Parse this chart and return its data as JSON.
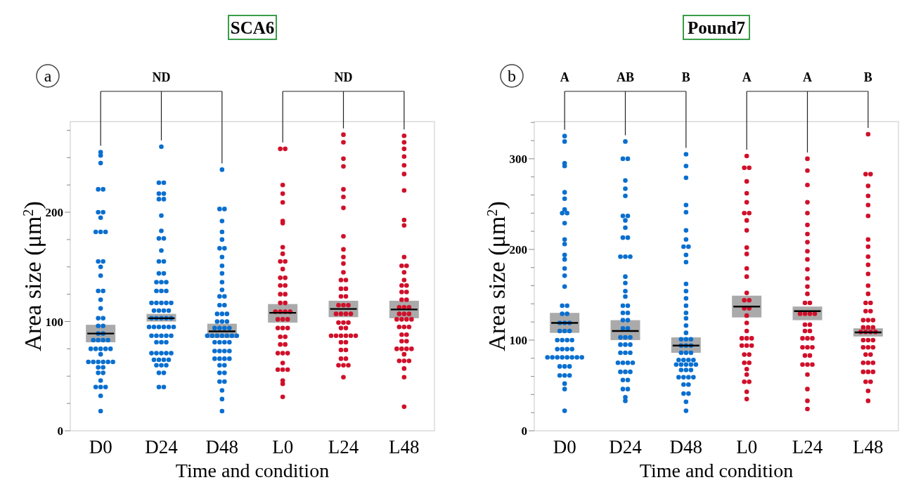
{
  "chart_data": [
    {
      "type": "scatter",
      "title": "SCA6",
      "xlabel": "Time and condition",
      "ylabel": "Area size (μm$^{2}$)",
      "categories": [
        "D0",
        "D24",
        "D48",
        "L0",
        "L24",
        "L48"
      ],
      "ylim": [
        0,
        283
      ],
      "yticks": [
        0,
        {
          "value": 25,
          "label": null
        },
        {
          "value": 50,
          "label": null
        },
        {
          "value": 75,
          "label": null
        },
        100,
        {
          "value": 125,
          "label": null
        },
        {
          "value": 150,
          "label": null
        },
        {
          "value": 175,
          "label": null
        },
        200,
        {
          "value": 225,
          "label": null
        },
        {
          "value": 250,
          "label": null
        },
        {
          "value": 275,
          "label": null
        }
      ],
      "annotations": [
        "a",
        {
          "text": "ND",
          "x": "D24"
        },
        {
          "text": "ND",
          "x": "L24"
        }
      ],
      "series": [
        {
          "type": "box",
          "color": "#aaaaaa",
          "boxes": [
            {
              "low": 81,
              "q1": 81,
              "median": 89,
              "q3": 97,
              "high": 97
            },
            {
              "low": 100,
              "q1": 100,
              "median": 103,
              "q3": 107,
              "high": 107
            },
            {
              "low": 85,
              "q1": 85,
              "median": 91,
              "q3": 98,
              "high": 98
            },
            {
              "low": 99,
              "q1": 99,
              "median": 108,
              "q3": 116,
              "high": 116
            },
            {
              "low": 104,
              "q1": 104,
              "median": 111.5,
              "q3": 119,
              "high": 119
            },
            {
              "low": 103,
              "q1": 103,
              "median": 111,
              "q3": 119,
              "high": 119
            }
          ]
        },
        {
          "color": "#0a6fcf",
          "marker": "circle",
          "x": [
            "D0",
            "D0",
            "D0",
            "D0",
            "D0",
            "D0",
            "D0",
            "D0",
            "D0",
            "D0",
            "D0",
            "D0",
            "D0",
            "D0",
            "D0",
            "D0",
            "D0",
            "D0",
            "D0",
            "D0",
            "D0",
            "D0",
            "D0",
            "D0",
            "D0",
            "D0",
            "D0",
            "D0",
            "D0",
            "D0",
            "D0",
            "D0",
            "D0",
            "D0",
            "D0",
            "D0",
            "D0",
            "D0",
            "D0",
            "D0",
            "D0",
            "D0",
            "D0",
            "D0",
            "D0",
            "D0",
            "D0",
            "D0",
            "D0",
            "D0",
            "D0",
            "D24",
            "D24",
            "D24",
            "D24",
            "D24",
            "D24",
            "D24",
            "D24",
            "D24",
            "D24",
            "D24",
            "D24",
            "D24",
            "D24",
            "D24",
            "D24",
            "D24",
            "D24",
            "D24",
            "D24",
            "D24",
            "D24",
            "D24",
            "D24",
            "D24",
            "D24",
            "D24",
            "D24",
            "D24",
            "D24",
            "D24",
            "D24",
            "D24",
            "D24",
            "D24",
            "D24",
            "D24",
            "D24",
            "D24",
            "D24",
            "D24",
            "D24",
            "D24",
            "D24",
            "D24",
            "D24",
            "D24",
            "D24",
            "D24",
            "D24",
            "D24",
            "D24",
            "D24",
            "D24",
            "D24",
            "D24",
            "D24",
            "D24",
            "D24",
            "D24",
            "D24",
            "D24",
            "D24",
            "D24",
            "D24",
            "D24",
            "D48",
            "D48",
            "D48",
            "D48",
            "D48",
            "D48",
            "D48",
            "D48",
            "D48",
            "D48",
            "D48",
            "D48",
            "D48",
            "D48",
            "D48",
            "D48",
            "D48",
            "D48",
            "D48",
            "D48",
            "D48",
            "D48",
            "D48",
            "D48",
            "D48",
            "D48",
            "D48",
            "D48",
            "D48",
            "D48",
            "D48",
            "D48",
            "D48",
            "D48",
            "D48",
            "D48",
            "D48",
            "D48",
            "D48",
            "D48",
            "D48",
            "D48",
            "D48",
            "D48",
            "D48",
            "D48",
            "D48",
            "D48",
            "D48",
            "D48",
            "D48",
            "D48",
            "D48",
            "D48",
            "D48"
          ],
          "values": [
            255,
            252,
            245,
            221,
            221,
            200,
            200,
            195,
            182,
            182,
            182,
            155,
            155,
            150,
            142,
            128,
            128,
            120,
            112,
            103,
            103,
            96,
            96,
            89,
            89,
            83,
            83,
            83,
            83,
            75,
            75,
            75,
            75,
            75,
            70,
            63,
            63,
            63,
            63,
            63,
            63,
            58,
            58,
            53,
            53,
            46,
            40,
            40,
            40,
            32,
            18,
            260,
            227,
            227,
            217,
            217,
            212,
            212,
            197,
            183,
            176,
            176,
            165,
            155,
            155,
            144,
            144,
            136,
            136,
            136,
            128,
            128,
            128,
            117,
            117,
            117,
            117,
            117,
            110,
            110,
            110,
            110,
            103,
            103,
            103,
            103,
            103,
            95,
            95,
            95,
            95,
            95,
            95,
            87,
            87,
            87,
            87,
            87,
            81,
            81,
            81,
            71,
            71,
            71,
            71,
            71,
            65,
            65,
            65,
            65,
            60,
            60,
            60,
            53,
            53,
            40,
            40,
            239,
            203,
            203,
            192,
            182,
            175,
            167,
            167,
            159,
            151,
            144,
            136,
            129,
            123,
            123,
            115,
            115,
            107,
            107,
            107,
            100,
            100,
            100,
            94,
            94,
            94,
            94,
            87,
            87,
            87,
            87,
            87,
            87,
            87,
            81,
            81,
            81,
            81,
            73,
            73,
            73,
            73,
            66,
            66,
            66,
            66,
            60,
            60,
            53,
            53,
            45,
            45,
            37,
            29,
            18
          ]
        },
        {
          "color": "#d0102a",
          "marker": "circle",
          "x": [
            "L0",
            "L0",
            "L0",
            "L0",
            "L0",
            "L0",
            "L0",
            "L0",
            "L0",
            "L0",
            "L0",
            "L0",
            "L0",
            "L0",
            "L0",
            "L0",
            "L0",
            "L0",
            "L0",
            "L0",
            "L0",
            "L0",
            "L0",
            "L0",
            "L0",
            "L0",
            "L0",
            "L0",
            "L0",
            "L0",
            "L0",
            "L0",
            "L0",
            "L0",
            "L0",
            "L0",
            "L0",
            "L0",
            "L0",
            "L0",
            "L0",
            "L0",
            "L0",
            "L0",
            "L24",
            "L24",
            "L24",
            "L24",
            "L24",
            "L24",
            "L24",
            "L24",
            "L24",
            "L24",
            "L24",
            "L24",
            "L24",
            "L24",
            "L24",
            "L24",
            "L24",
            "L24",
            "L24",
            "L24",
            "L24",
            "L24",
            "L24",
            "L24",
            "L24",
            "L24",
            "L24",
            "L24",
            "L24",
            "L24",
            "L24",
            "L24",
            "L24",
            "L24",
            "L24",
            "L24",
            "L24",
            "L24",
            "L24",
            "L24",
            "L24",
            "L24",
            "L24",
            "L24",
            "L24",
            "L24",
            "L48",
            "L48",
            "L48",
            "L48",
            "L48",
            "L48",
            "L48",
            "L48",
            "L48",
            "L48",
            "L48",
            "L48",
            "L48",
            "L48",
            "L48",
            "L48",
            "L48",
            "L48",
            "L48",
            "L48",
            "L48",
            "L48",
            "L48",
            "L48",
            "L48",
            "L48",
            "L48",
            "L48",
            "L48",
            "L48",
            "L48",
            "L48",
            "L48",
            "L48",
            "L48",
            "L48",
            "L48",
            "L48",
            "L48",
            "L48",
            "L48",
            "L48",
            "L48",
            "L48",
            "L48",
            "L48",
            "L48",
            "L48"
          ],
          "values": [
            258,
            258,
            225,
            217,
            209,
            192,
            190,
            168,
            162,
            155,
            155,
            148,
            140,
            140,
            133,
            133,
            125,
            125,
            117,
            117,
            109,
            109,
            109,
            109,
            102,
            102,
            102,
            94,
            94,
            94,
            86,
            86,
            79,
            79,
            71,
            71,
            71,
            62,
            56,
            56,
            56,
            46,
            43,
            31,
            271,
            264,
            249,
            242,
            221,
            214,
            204,
            178,
            166,
            159,
            153,
            145,
            138,
            138,
            130,
            130,
            123,
            123,
            115,
            115,
            115,
            107,
            107,
            107,
            107,
            99,
            99,
            99,
            94,
            94,
            87,
            87,
            87,
            87,
            87,
            87,
            81,
            81,
            74,
            74,
            66,
            66,
            60,
            60,
            60,
            49,
            270,
            264,
            258,
            251,
            243,
            235,
            220,
            193,
            188,
            159,
            151,
            151,
            145,
            138,
            133,
            133,
            127,
            127,
            120,
            120,
            113,
            113,
            113,
            107,
            107,
            107,
            102,
            102,
            102,
            102,
            95,
            95,
            95,
            88,
            88,
            82,
            82,
            75,
            75,
            75,
            75,
            70,
            64,
            64,
            64,
            57,
            49,
            22
          ]
        }
      ]
    },
    {
      "type": "scatter",
      "title": "Pound7",
      "xlabel": "Time and condition",
      "ylabel": "Area size (μm$^{2}$)",
      "categories": [
        "D0",
        "D24",
        "D48",
        "L0",
        "L24",
        "L48"
      ],
      "ylim": [
        0,
        341
      ],
      "yticks": [
        0,
        {
          "value": 20,
          "label": null
        },
        {
          "value": 40,
          "label": null
        },
        {
          "value": 60,
          "label": null
        },
        {
          "value": 80,
          "label": null
        },
        100,
        {
          "value": 120,
          "label": null
        },
        {
          "value": 140,
          "label": null
        },
        {
          "value": 160,
          "label": null
        },
        {
          "value": 180,
          "label": null
        },
        200,
        {
          "value": 220,
          "label": null
        },
        {
          "value": 240,
          "label": null
        },
        {
          "value": 260,
          "label": null
        },
        {
          "value": 280,
          "label": null
        },
        300,
        {
          "value": 320,
          "label": null
        },
        {
          "value": 340,
          "label": null
        }
      ],
      "annotations": [
        "b",
        {
          "text": "A",
          "x": "D0"
        },
        {
          "text": "AB",
          "x": "D24"
        },
        {
          "text": "B",
          "x": "D48"
        },
        {
          "text": "A",
          "x": "L0"
        },
        {
          "text": "A",
          "x": "L24"
        },
        {
          "text": "B",
          "x": "L48"
        }
      ],
      "series": [
        {
          "type": "box",
          "color": "#aaaaaa",
          "boxes": [
            {
              "low": 108,
              "q1": 108,
              "median": 119,
              "q3": 130,
              "high": 130
            },
            {
              "low": 100,
              "q1": 100,
              "median": 110,
              "q3": 122,
              "high": 122
            },
            {
              "low": 86,
              "q1": 86,
              "median": 94,
              "q3": 103,
              "high": 103
            },
            {
              "low": 125,
              "q1": 125,
              "median": 137,
              "q3": 149,
              "high": 149
            },
            {
              "low": 122,
              "q1": 122,
              "median": 132,
              "q3": 137,
              "high": 137
            },
            {
              "low": 104,
              "q1": 104,
              "median": 108.5,
              "q3": 113,
              "high": 113
            }
          ]
        },
        {
          "color": "#0a6fcf",
          "marker": "circle",
          "x": [
            "D0",
            "D0",
            "D0",
            "D0",
            "D0",
            "D0",
            "D0",
            "D0",
            "D0",
            "D0",
            "D0",
            "D0",
            "D0",
            "D0",
            "D0",
            "D0",
            "D0",
            "D0",
            "D0",
            "D0",
            "D0",
            "D0",
            "D0",
            "D0",
            "D0",
            "D0",
            "D0",
            "D0",
            "D0",
            "D0",
            "D0",
            "D0",
            "D0",
            "D0",
            "D0",
            "D0",
            "D0",
            "D0",
            "D0",
            "D0",
            "D0",
            "D0",
            "D0",
            "D0",
            "D0",
            "D0",
            "D0",
            "D0",
            "D0",
            "D0",
            "D0",
            "D0",
            "D24",
            "D24",
            "D24",
            "D24",
            "D24",
            "D24",
            "D24",
            "D24",
            "D24",
            "D24",
            "D24",
            "D24",
            "D24",
            "D24",
            "D24",
            "D24",
            "D24",
            "D24",
            "D24",
            "D24",
            "D24",
            "D24",
            "D24",
            "D24",
            "D24",
            "D24",
            "D24",
            "D24",
            "D24",
            "D24",
            "D24",
            "D24",
            "D24",
            "D24",
            "D24",
            "D24",
            "D24",
            "D24",
            "D24",
            "D24",
            "D24",
            "D24",
            "D24",
            "D24",
            "D24",
            "D24",
            "D24",
            "D24",
            "D24",
            "D48",
            "D48",
            "D48",
            "D48",
            "D48",
            "D48",
            "D48",
            "D48",
            "D48",
            "D48",
            "D48",
            "D48",
            "D48",
            "D48",
            "D48",
            "D48",
            "D48",
            "D48",
            "D48",
            "D48",
            "D48",
            "D48",
            "D48",
            "D48",
            "D48",
            "D48",
            "D48",
            "D48",
            "D48",
            "D48",
            "D48",
            "D48",
            "D48",
            "D48",
            "D48",
            "D48",
            "D48",
            "D48",
            "D48",
            "D48",
            "D48",
            "D48",
            "D48",
            "D48",
            "D48",
            "D48",
            "D48",
            "D48",
            "D48",
            "D48"
          ],
          "values": [
            325,
            319,
            295,
            292,
            263,
            256,
            244,
            240,
            240,
            229,
            211,
            206,
            194,
            189,
            179,
            171,
            159,
            138,
            138,
            129,
            129,
            119,
            119,
            119,
            110,
            110,
            110,
            100,
            100,
            100,
            100,
            90,
            90,
            90,
            90,
            81,
            81,
            81,
            81,
            81,
            81,
            81,
            81,
            71,
            71,
            71,
            61,
            61,
            61,
            52,
            46,
            22,
            319,
            300,
            300,
            276,
            267,
            259,
            237,
            237,
            232,
            224,
            213,
            213,
            192,
            192,
            192,
            170,
            163,
            154,
            148,
            138,
            138,
            130,
            130,
            122,
            122,
            113,
            113,
            103,
            103,
            103,
            95,
            95,
            95,
            86,
            86,
            86,
            75,
            75,
            75,
            75,
            65,
            65,
            65,
            56,
            56,
            46,
            46,
            37,
            33,
            305,
            292,
            279,
            249,
            241,
            221,
            211,
            203,
            203,
            194,
            186,
            162,
            154,
            146,
            138,
            130,
            124,
            116,
            108,
            101,
            101,
            101,
            94,
            94,
            94,
            86,
            86,
            86,
            78,
            78,
            78,
            78,
            73,
            73,
            73,
            73,
            73,
            67,
            67,
            67,
            59,
            59,
            59,
            59,
            51,
            51,
            41,
            41,
            32,
            22
          ]
        },
        {
          "color": "#d0102a",
          "marker": "circle",
          "x": [
            "L0",
            "L0",
            "L0",
            "L0",
            "L0",
            "L0",
            "L0",
            "L0",
            "L0",
            "L0",
            "L0",
            "L0",
            "L0",
            "L0",
            "L0",
            "L0",
            "L0",
            "L0",
            "L0",
            "L0",
            "L0",
            "L0",
            "L0",
            "L0",
            "L0",
            "L0",
            "L0",
            "L0",
            "L0",
            "L0",
            "L0",
            "L0",
            "L0",
            "L0",
            "L0",
            "L0",
            "L0",
            "L0",
            "L24",
            "L24",
            "L24",
            "L24",
            "L24",
            "L24",
            "L24",
            "L24",
            "L24",
            "L24",
            "L24",
            "L24",
            "L24",
            "L24",
            "L24",
            "L24",
            "L24",
            "L24",
            "L24",
            "L24",
            "L24",
            "L24",
            "L24",
            "L24",
            "L24",
            "L24",
            "L24",
            "L24",
            "L24",
            "L24",
            "L24",
            "L24",
            "L24",
            "L24",
            "L24",
            "L24",
            "L24",
            "L24",
            "L24",
            "L48",
            "L48",
            "L48",
            "L48",
            "L48",
            "L48",
            "L48",
            "L48",
            "L48",
            "L48",
            "L48",
            "L48",
            "L48",
            "L48",
            "L48",
            "L48",
            "L48",
            "L48",
            "L48",
            "L48",
            "L48",
            "L48",
            "L48",
            "L48",
            "L48",
            "L48",
            "L48",
            "L48",
            "L48",
            "L48",
            "L48",
            "L48",
            "L48",
            "L48",
            "L48",
            "L48",
            "L48",
            "L48",
            "L48",
            "L48",
            "L48",
            "L48",
            "L48",
            "L48",
            "L48",
            "L48"
          ],
          "values": [
            303,
            290,
            290,
            275,
            262,
            252,
            240,
            240,
            232,
            221,
            202,
            195,
            179,
            170,
            152,
            144,
            144,
            135,
            135,
            127,
            119,
            110,
            102,
            102,
            102,
            94,
            94,
            94,
            84,
            84,
            75,
            75,
            68,
            62,
            54,
            54,
            43,
            35,
            300,
            287,
            271,
            252,
            240,
            227,
            217,
            208,
            198,
            189,
            178,
            168,
            159,
            151,
            141,
            141,
            129,
            129,
            129,
            129,
            117,
            117,
            110,
            110,
            102,
            102,
            102,
            92,
            92,
            92,
            83,
            83,
            73,
            73,
            73,
            62,
            46,
            33,
            24,
            327,
            283,
            283,
            270,
            259,
            249,
            237,
            211,
            203,
            192,
            183,
            173,
            160,
            151,
            141,
            141,
            132,
            132,
            122,
            122,
            122,
            114,
            114,
            114,
            109,
            109,
            109,
            109,
            100,
            100,
            100,
            92,
            92,
            92,
            84,
            84,
            75,
            75,
            75,
            65,
            65,
            65,
            54,
            54,
            44,
            33
          ]
        }
      ]
    }
  ]
}
